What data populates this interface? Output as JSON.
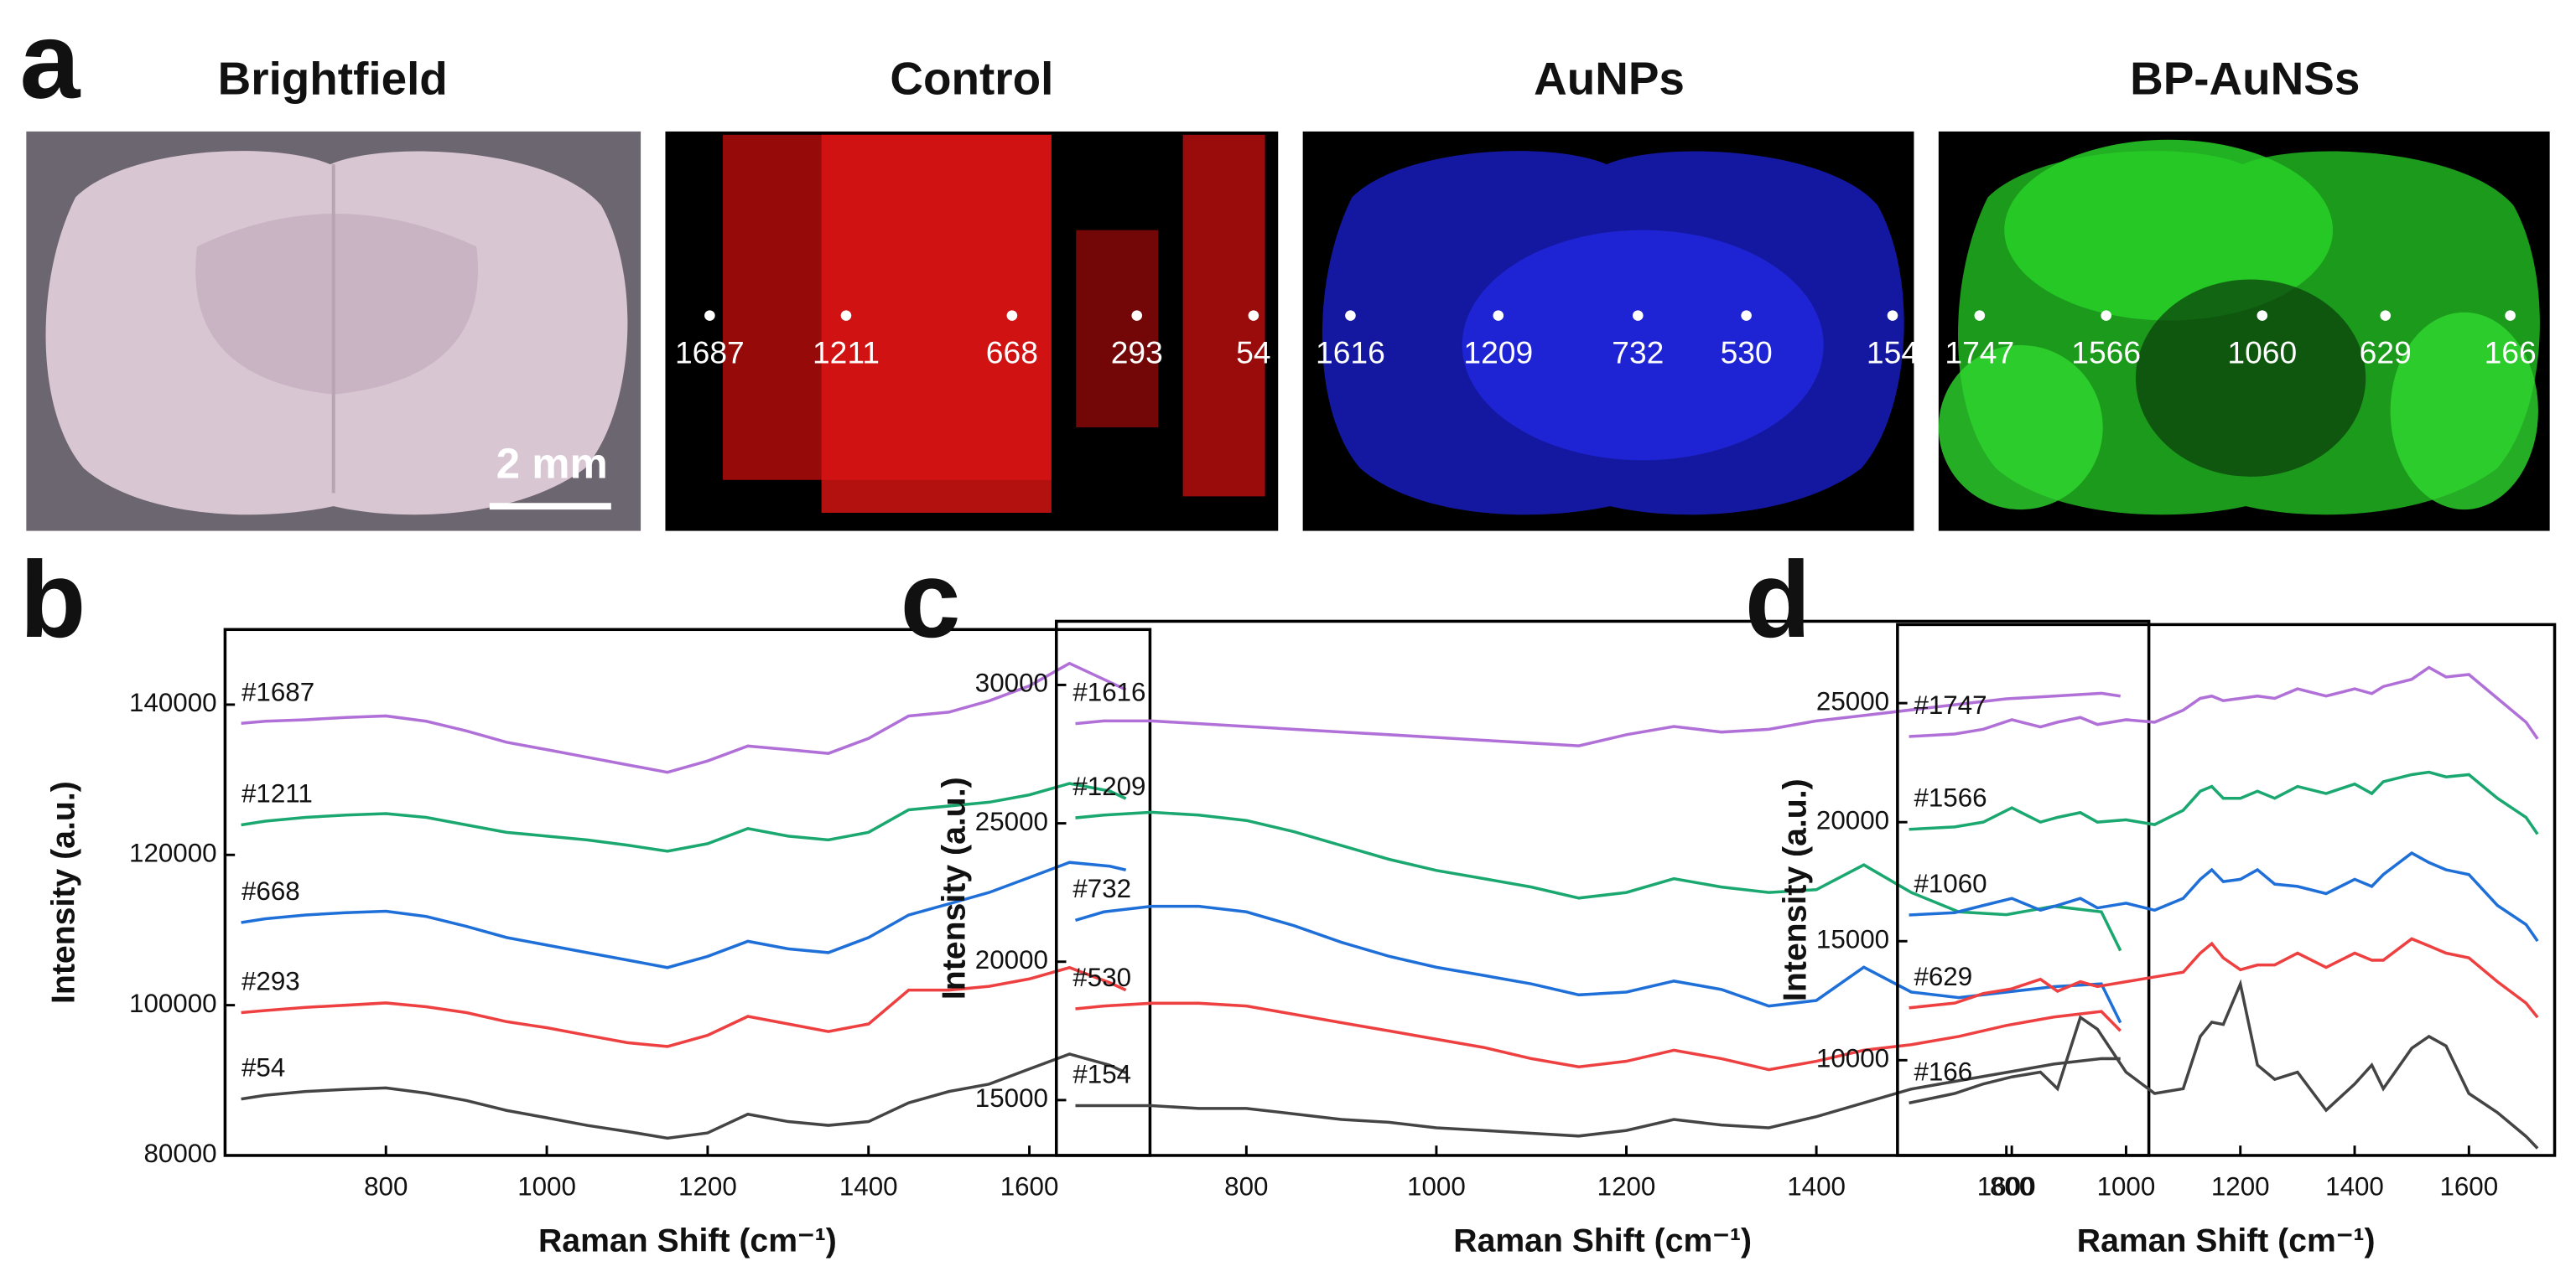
{
  "panel_a": {
    "label": "a",
    "images": [
      {
        "title": "Brightfield",
        "scale_bar": "2 mm"
      },
      {
        "title": "Control",
        "points": [
          "1687",
          "1211",
          "668",
          "293",
          "54"
        ]
      },
      {
        "title": "AuNPs",
        "points": [
          "1616",
          "1209",
          "732",
          "530",
          "154"
        ]
      },
      {
        "title": "BP-AuNSs",
        "points": [
          "1747",
          "1566",
          "1060",
          "629",
          "166"
        ]
      }
    ]
  },
  "chart_data": [
    {
      "type": "line",
      "panel_label": "b",
      "xlabel": "Raman Shift (cm⁻¹)",
      "ylabel": "Intensity (a.u.)",
      "xlim": [
        600,
        1750
      ],
      "ylim": [
        80000,
        150000
      ],
      "xticks": [
        800,
        1000,
        1200,
        1400,
        1600
      ],
      "yticks": [
        80000,
        100000,
        120000,
        140000
      ],
      "x": [
        620,
        650,
        700,
        750,
        800,
        850,
        900,
        950,
        1000,
        1050,
        1100,
        1150,
        1200,
        1250,
        1300,
        1350,
        1400,
        1450,
        1500,
        1550,
        1600,
        1650,
        1700,
        1720
      ],
      "series": [
        {
          "name": "#1687",
          "color": "#b070d8",
          "values": [
            137500,
            137800,
            138000,
            138300,
            138500,
            137800,
            136500,
            135000,
            134000,
            133000,
            132000,
            131000,
            132500,
            134500,
            134000,
            133500,
            135500,
            138500,
            139000,
            140500,
            142500,
            145500,
            143000,
            142000
          ]
        },
        {
          "name": "#1211",
          "color": "#1aa870",
          "values": [
            124000,
            124500,
            125000,
            125300,
            125500,
            125000,
            124000,
            123000,
            122500,
            122000,
            121300,
            120500,
            121500,
            123500,
            122500,
            122000,
            123000,
            126000,
            126500,
            127000,
            128000,
            129500,
            128500,
            127500
          ]
        },
        {
          "name": "#668",
          "color": "#1f6fd8",
          "values": [
            111000,
            111500,
            112000,
            112300,
            112500,
            111800,
            110500,
            109000,
            108000,
            107000,
            106000,
            105000,
            106500,
            108500,
            107500,
            107000,
            109000,
            112000,
            113500,
            115000,
            117000,
            119000,
            118500,
            118000
          ]
        },
        {
          "name": "#293",
          "color": "#ee4040",
          "values": [
            99000,
            99300,
            99700,
            100000,
            100300,
            99800,
            99000,
            97800,
            97000,
            96000,
            95000,
            94500,
            96000,
            98500,
            97500,
            96500,
            97500,
            102000,
            102000,
            102500,
            103500,
            105000,
            103000,
            102000
          ]
        },
        {
          "name": "#54",
          "color": "#444444",
          "values": [
            87500,
            88000,
            88500,
            88800,
            89000,
            88300,
            87300,
            86000,
            85000,
            84000,
            83200,
            82300,
            83000,
            85500,
            84500,
            84000,
            84500,
            87000,
            88500,
            89500,
            91500,
            93500,
            92000,
            91000
          ]
        }
      ]
    },
    {
      "type": "line",
      "panel_label": "c",
      "xlabel": "Raman Shift (cm⁻¹)",
      "ylabel": "Intensity (a.u.)",
      "xlim": [
        600,
        1750
      ],
      "ylim": [
        13000,
        32300
      ],
      "xticks": [
        800,
        1000,
        1200,
        1400,
        1600
      ],
      "yticks": [
        15000,
        20000,
        25000,
        30000
      ],
      "x": [
        620,
        650,
        700,
        750,
        800,
        850,
        900,
        950,
        1000,
        1050,
        1100,
        1150,
        1200,
        1250,
        1300,
        1350,
        1400,
        1450,
        1500,
        1550,
        1600,
        1650,
        1700,
        1720
      ],
      "series": [
        {
          "name": "#1616",
          "color": "#b070d8",
          "values": [
            28600,
            28700,
            28700,
            28600,
            28500,
            28400,
            28300,
            28200,
            28100,
            28000,
            27900,
            27800,
            28200,
            28500,
            28300,
            28400,
            28700,
            28900,
            29100,
            29300,
            29500,
            29600,
            29700,
            29600
          ]
        },
        {
          "name": "#1209",
          "color": "#1aa870",
          "values": [
            25200,
            25300,
            25400,
            25300,
            25100,
            24700,
            24200,
            23700,
            23300,
            23000,
            22700,
            22300,
            22500,
            23000,
            22700,
            22500,
            22600,
            23500,
            22500,
            21800,
            21700,
            22000,
            21800,
            20400
          ]
        },
        {
          "name": "#732",
          "color": "#1f6fd8",
          "values": [
            21500,
            21800,
            22000,
            22000,
            21800,
            21300,
            20700,
            20200,
            19800,
            19500,
            19200,
            18800,
            18900,
            19300,
            19000,
            18400,
            18600,
            19800,
            18900,
            18700,
            18900,
            19100,
            19200,
            17800
          ]
        },
        {
          "name": "#530",
          "color": "#ee4040",
          "values": [
            18300,
            18400,
            18500,
            18500,
            18400,
            18100,
            17800,
            17500,
            17200,
            16900,
            16500,
            16200,
            16400,
            16800,
            16500,
            16100,
            16400,
            16800,
            17000,
            17300,
            17700,
            18000,
            18200,
            17500
          ]
        },
        {
          "name": "#154",
          "color": "#444444",
          "values": [
            14800,
            14800,
            14800,
            14700,
            14700,
            14500,
            14300,
            14200,
            14000,
            13900,
            13800,
            13700,
            13900,
            14300,
            14100,
            14000,
            14400,
            14900,
            15400,
            15700,
            16000,
            16300,
            16500,
            16500
          ]
        }
      ]
    },
    {
      "type": "line",
      "panel_label": "d",
      "xlabel": "Raman Shift (cm⁻¹)",
      "ylabel": "Intensity (a.u.)",
      "xlim": [
        600,
        1750
      ],
      "ylim": [
        6000,
        28300
      ],
      "xticks": [
        800,
        1000,
        1200,
        1400,
        1600
      ],
      "yticks": [
        10000,
        15000,
        20000,
        25000
      ],
      "x": [
        620,
        700,
        750,
        800,
        850,
        880,
        920,
        950,
        1000,
        1050,
        1100,
        1130,
        1150,
        1170,
        1200,
        1230,
        1260,
        1300,
        1350,
        1400,
        1430,
        1450,
        1500,
        1530,
        1560,
        1600,
        1650,
        1700,
        1720
      ],
      "series": [
        {
          "name": "#1747",
          "color": "#b070d8",
          "values": [
            23600,
            23700,
            23900,
            24300,
            24000,
            24200,
            24400,
            24100,
            24300,
            24200,
            24700,
            25200,
            25300,
            25100,
            25200,
            25300,
            25200,
            25600,
            25300,
            25600,
            25400,
            25700,
            26000,
            26500,
            26100,
            26200,
            25200,
            24200,
            23500
          ]
        },
        {
          "name": "#1566",
          "color": "#1aa870",
          "values": [
            19700,
            19800,
            20000,
            20600,
            20000,
            20200,
            20400,
            20000,
            20100,
            19900,
            20500,
            21300,
            21500,
            21000,
            21000,
            21300,
            21000,
            21500,
            21200,
            21600,
            21200,
            21700,
            22000,
            22100,
            21900,
            22000,
            21000,
            20200,
            19500
          ]
        },
        {
          "name": "#1060",
          "color": "#1f6fd8",
          "values": [
            16100,
            16200,
            16500,
            16800,
            16300,
            16500,
            16800,
            16400,
            16600,
            16300,
            16800,
            17600,
            18000,
            17500,
            17600,
            18000,
            17400,
            17300,
            17000,
            17600,
            17300,
            17800,
            18700,
            18300,
            18000,
            17800,
            16500,
            15700,
            15000
          ]
        },
        {
          "name": "#629",
          "color": "#ee4040",
          "values": [
            12200,
            12400,
            12800,
            13000,
            13400,
            12900,
            13300,
            13100,
            13300,
            13500,
            13700,
            14500,
            14900,
            14300,
            13800,
            14000,
            14000,
            14500,
            13900,
            14500,
            14200,
            14200,
            15100,
            14800,
            14500,
            14300,
            13300,
            12400,
            11800
          ]
        },
        {
          "name": "#166",
          "color": "#444444",
          "values": [
            8200,
            8600,
            9000,
            9300,
            9500,
            8800,
            11800,
            11300,
            9500,
            8600,
            8800,
            11000,
            11600,
            11500,
            13200,
            9800,
            9200,
            9500,
            7900,
            9000,
            9800,
            8800,
            10500,
            11000,
            10600,
            8600,
            7800,
            6800,
            6300
          ]
        }
      ]
    }
  ]
}
